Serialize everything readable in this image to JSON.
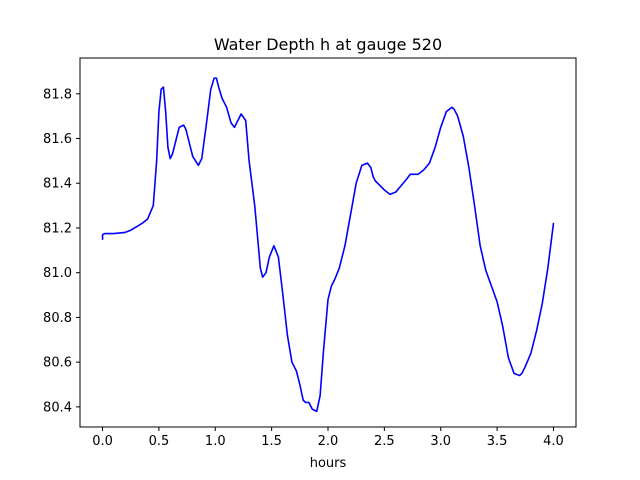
{
  "chart_data": {
    "type": "line",
    "title": "Water Depth h at gauge 520",
    "xlabel": "hours",
    "ylabel": "",
    "xlim": [
      -0.2,
      4.2
    ],
    "ylim": [
      80.31,
      81.96
    ],
    "xticks": [
      0.0,
      0.5,
      1.0,
      1.5,
      2.0,
      2.5,
      3.0,
      3.5,
      4.0
    ],
    "xtick_labels": [
      "0.0",
      "0.5",
      "1.0",
      "1.5",
      "2.0",
      "2.5",
      "3.0",
      "3.5",
      "4.0"
    ],
    "yticks": [
      80.4,
      80.6,
      80.8,
      81.0,
      81.2,
      81.4,
      81.6,
      81.8
    ],
    "ytick_labels": [
      "80.4",
      "80.6",
      "80.8",
      "81.0",
      "81.2",
      "81.4",
      "81.6",
      "81.8"
    ],
    "grid": false,
    "series": [
      {
        "color": "#0000ff",
        "x": [
          0.0,
          0.0,
          0.02,
          0.1,
          0.2,
          0.25,
          0.3,
          0.35,
          0.4,
          0.45,
          0.48,
          0.5,
          0.52,
          0.54,
          0.56,
          0.58,
          0.6,
          0.62,
          0.65,
          0.68,
          0.72,
          0.74,
          0.76,
          0.8,
          0.85,
          0.88,
          0.92,
          0.96,
          0.99,
          1.01,
          1.03,
          1.06,
          1.1,
          1.14,
          1.17,
          1.2,
          1.23,
          1.27,
          1.3,
          1.35,
          1.4,
          1.42,
          1.45,
          1.48,
          1.52,
          1.56,
          1.6,
          1.64,
          1.68,
          1.72,
          1.75,
          1.78,
          1.8,
          1.83,
          1.86,
          1.9,
          1.93,
          1.96,
          2.0,
          2.03,
          2.06,
          2.1,
          2.15,
          2.2,
          2.25,
          2.3,
          2.35,
          2.38,
          2.4,
          2.42,
          2.46,
          2.5,
          2.55,
          2.6,
          2.65,
          2.7,
          2.73,
          2.76,
          2.8,
          2.85,
          2.9,
          2.95,
          3.0,
          3.05,
          3.1,
          3.12,
          3.15,
          3.2,
          3.25,
          3.3,
          3.35,
          3.4,
          3.45,
          3.5,
          3.55,
          3.6,
          3.65,
          3.7,
          3.72,
          3.75,
          3.8,
          3.85,
          3.9,
          3.95,
          4.0
        ],
        "y": [
          81.15,
          81.17,
          81.175,
          81.175,
          81.18,
          81.19,
          81.205,
          81.22,
          81.24,
          81.3,
          81.5,
          81.72,
          81.82,
          81.83,
          81.72,
          81.56,
          81.51,
          81.53,
          81.59,
          81.65,
          81.66,
          81.64,
          81.6,
          81.52,
          81.48,
          81.51,
          81.66,
          81.82,
          81.87,
          81.87,
          81.83,
          81.78,
          81.74,
          81.67,
          81.65,
          81.68,
          81.71,
          81.68,
          81.5,
          81.3,
          81.02,
          80.98,
          81.0,
          81.07,
          81.12,
          81.07,
          80.9,
          80.72,
          80.6,
          80.56,
          80.5,
          80.43,
          80.42,
          80.42,
          80.39,
          80.38,
          80.45,
          80.65,
          80.88,
          80.94,
          80.97,
          81.02,
          81.12,
          81.26,
          81.4,
          81.48,
          81.49,
          81.47,
          81.43,
          81.41,
          81.39,
          81.37,
          81.35,
          81.36,
          81.39,
          81.42,
          81.44,
          81.44,
          81.44,
          81.46,
          81.49,
          81.56,
          81.65,
          81.72,
          81.74,
          81.73,
          81.7,
          81.61,
          81.47,
          81.3,
          81.12,
          81.01,
          80.94,
          80.87,
          80.76,
          80.62,
          80.55,
          80.54,
          80.55,
          80.58,
          80.64,
          80.74,
          80.86,
          81.02,
          81.22
        ]
      }
    ]
  }
}
